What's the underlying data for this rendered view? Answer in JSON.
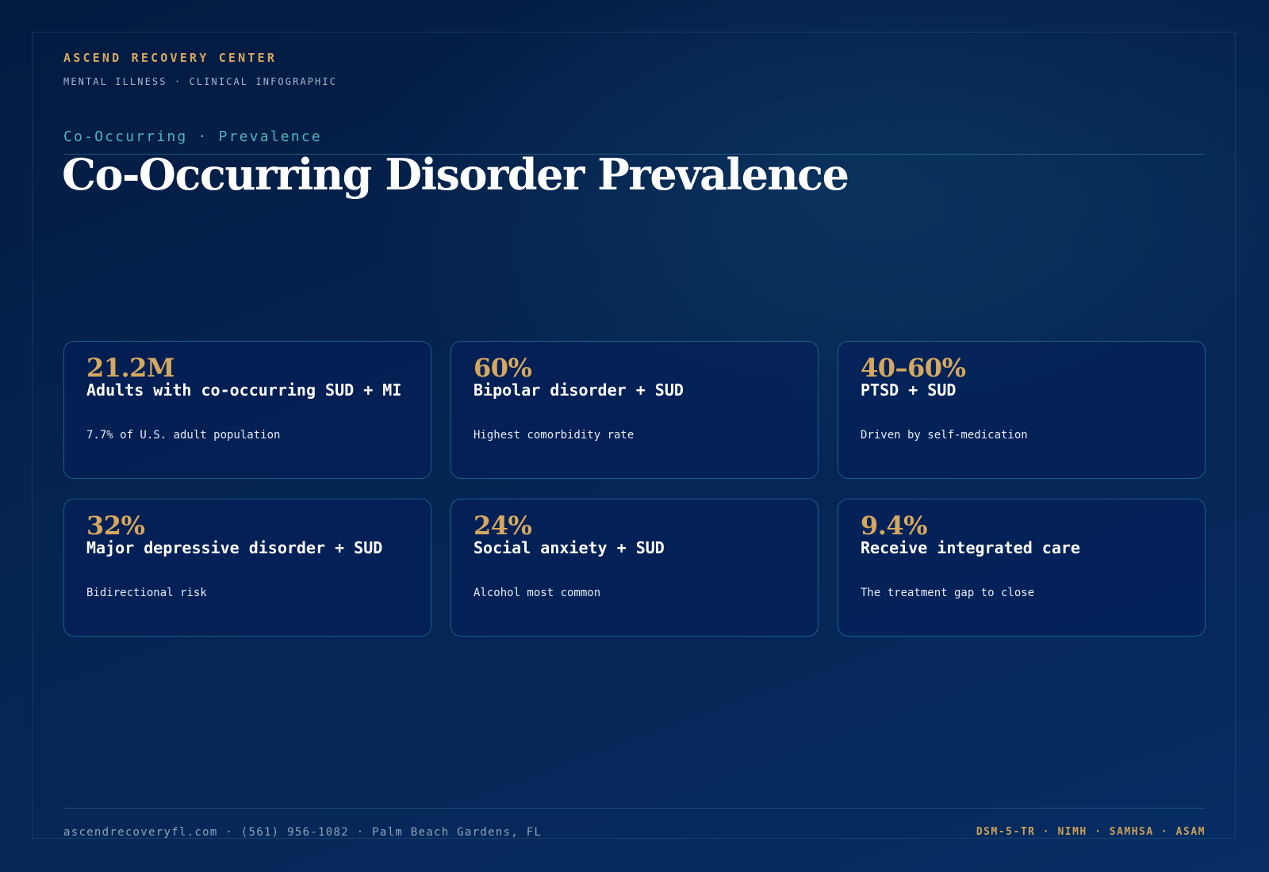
{
  "header": {
    "brand_name": "ASCEND RECOVERY CENTER",
    "brand_subtitle": "MENTAL ILLNESS · CLINICAL INFOGRAPHIC"
  },
  "hero": {
    "eyebrow": "Co-Occurring · Prevalence",
    "title": "Co-Occurring Disorder Prevalence"
  },
  "stats": [
    {
      "value": "21.2M",
      "label": "Adults with co-occurring SUD + MI",
      "note": "7.7% of U.S. adult population"
    },
    {
      "value": "60%",
      "label": "Bipolar disorder + SUD",
      "note": "Highest comorbidity rate"
    },
    {
      "value": "40–60%",
      "label": "PTSD + SUD",
      "note": "Driven by self-medication"
    },
    {
      "value": "32%",
      "label": "Major depressive disorder + SUD",
      "note": "Bidirectional risk"
    },
    {
      "value": "24%",
      "label": "Social anxiety + SUD",
      "note": "Alcohol most common"
    },
    {
      "value": "9.4%",
      "label": "Receive integrated care",
      "note": "The treatment gap to close"
    }
  ],
  "footer": {
    "contact": "ascendrecoveryfl.com · (561) 956-1082 · Palm Beach Gardens, FL",
    "sources": "DSM-5-TR · NIMH · SAMHSA · ASAM"
  },
  "colors": {
    "accent_gold": "#d4a860",
    "accent_teal": "#4fb3b8",
    "background": "#052552"
  }
}
